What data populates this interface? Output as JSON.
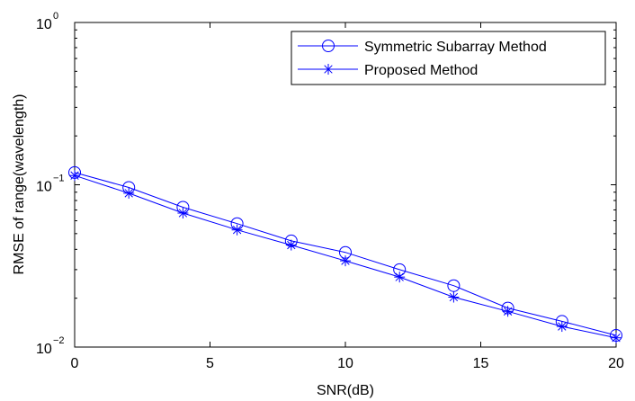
{
  "chart_data": {
    "type": "line",
    "title": "",
    "xlabel": "SNR(dB)",
    "ylabel": "RMSE of range(wavelength)",
    "xlim": [
      0,
      20
    ],
    "ylim": [
      0.01,
      1
    ],
    "yscale": "log",
    "xticks": [
      0,
      5,
      10,
      15,
      20
    ],
    "xtick_labels": [
      "0",
      "5",
      "10",
      "15",
      "20"
    ],
    "yticks": [
      0.01,
      0.1,
      1
    ],
    "ytick_base": "10",
    "ytick_exponents": [
      "−2",
      "−1",
      "0"
    ],
    "grid": false,
    "legend_position": "top-right",
    "x": [
      0,
      2,
      4,
      6,
      8,
      10,
      12,
      14,
      16,
      18,
      20
    ],
    "series": [
      {
        "name": "Symmetric Subarray Method",
        "marker": "circle",
        "color": "#0000ff",
        "values": [
          0.119,
          0.0963,
          0.0727,
          0.0576,
          0.0451,
          0.0383,
          0.03,
          0.0239,
          0.0174,
          0.0144,
          0.0118
        ]
      },
      {
        "name": "Proposed Method",
        "marker": "asterisk",
        "color": "#0000ff",
        "values": [
          0.114,
          0.0887,
          0.0669,
          0.0527,
          0.0425,
          0.034,
          0.027,
          0.0203,
          0.0166,
          0.0134,
          0.0114
        ]
      }
    ]
  }
}
